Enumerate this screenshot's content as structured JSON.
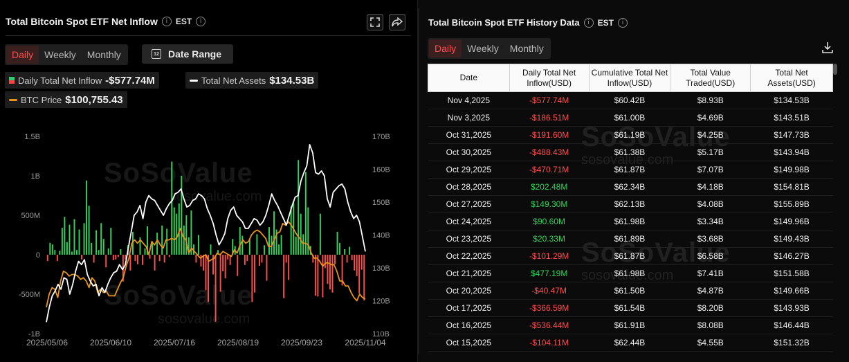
{
  "left": {
    "title": "Total Bitcoin Spot ETF Net Inflow",
    "timezone": "EST",
    "tabs": [
      "Daily",
      "Weekly",
      "Monthly"
    ],
    "active_tab": "Daily",
    "date_range_label": "Date Range",
    "legend": {
      "inflow_label": "Daily Total Net Inflow",
      "inflow_value": "-$577.74M",
      "assets_label": "Total Net Assets",
      "assets_value": "$134.53B",
      "btc_label": "BTC Price",
      "btc_value": "$100,755.43"
    },
    "icons": [
      "expand-icon",
      "share-icon",
      "info-icon",
      "calendar-icon"
    ]
  },
  "watermark": {
    "brand": "SoSoValue",
    "url": "sosovalue.com"
  },
  "colors": {
    "positive": "#2fd45a",
    "negative": "#ff4d4d",
    "assets_line": "#ffffff",
    "btc_line": "#e8941a",
    "active_tab": "#ff4d4d"
  },
  "chart_data": {
    "type": "bar",
    "x_ticks": [
      "2025/05/06",
      "2025/06/10",
      "2025/07/16",
      "2025/08/19",
      "2025/09/23",
      "2025/11/04"
    ],
    "y_left_ticks": [
      "1.5B",
      "1B",
      "500M",
      "0",
      "-500M",
      "-1B"
    ],
    "y_right_ticks": [
      "170B",
      "160B",
      "150B",
      "140B",
      "130B",
      "120B",
      "110B"
    ],
    "y_left_range": [
      -1000,
      1500
    ],
    "y_right_range": [
      110,
      170
    ],
    "series": [
      {
        "name": "Daily Total Net Inflow",
        "unit": "M",
        "values": [
          -80,
          150,
          130,
          60,
          -80,
          50,
          340,
          480,
          160,
          380,
          40,
          450,
          60,
          320,
          -60,
          400,
          940,
          620,
          150,
          -100,
          310,
          60,
          400,
          200,
          -160,
          80,
          340,
          -70,
          -60,
          -30,
          70,
          -340,
          -60,
          120,
          -200,
          290,
          -80,
          -120,
          220,
          -130,
          80,
          360,
          -50,
          170,
          -200,
          280,
          -80,
          370,
          -100,
          330,
          -30,
          1180,
          600,
          520,
          650,
          1000,
          370,
          500,
          220,
          560,
          130,
          -100,
          250,
          -150,
          -200,
          -450,
          -600,
          130,
          -250,
          -850,
          60,
          -470,
          -210,
          -300,
          -60,
          -130,
          200,
          110,
          -270,
          350,
          240,
          -130,
          -80,
          200,
          -600,
          -480,
          260,
          -140,
          -100,
          120,
          -330,
          350,
          240,
          550,
          320,
          130,
          250,
          -550,
          -100,
          -320,
          610,
          680,
          230,
          1200,
          520,
          260,
          1050,
          600,
          110,
          -100,
          -520,
          -530,
          520,
          -540,
          -170,
          -370,
          -440,
          -480,
          -120,
          290,
          150,
          -390,
          70,
          -100,
          100,
          -70,
          -200,
          -270,
          -490,
          -190,
          -580
        ]
      },
      {
        "name": "Total Net Assets",
        "unit": "B",
        "values": [
          113.5,
          118,
          121.5,
          123,
          125,
          123.5,
          127,
          126.5,
          122,
          125,
          129,
          132,
          131,
          132.5,
          128,
          126,
          124.5,
          125,
          121.5,
          124,
          122.5,
          125,
          127,
          128.5,
          129,
          131,
          129.5,
          131,
          136,
          141,
          146,
          147,
          149,
          145,
          150,
          152,
          151,
          150.5,
          149,
          147.5,
          146,
          148,
          149.5,
          150.5,
          152.5,
          153,
          154,
          151,
          148.5,
          149,
          150.5,
          151,
          152.5,
          152,
          151,
          148,
          146,
          143.5,
          140,
          137,
          138.5,
          140.5,
          145,
          147.5,
          148.5,
          146,
          145,
          144,
          142,
          142,
          143.5,
          145,
          144.5,
          143,
          144,
          146,
          149,
          152.5,
          150.5,
          149,
          147,
          145,
          143,
          146,
          149,
          151.5,
          152,
          156.5,
          159,
          161,
          167.5,
          165,
          159,
          158.5,
          159.5,
          158,
          151,
          148.5,
          153,
          154,
          155,
          155.5,
          154,
          150,
          147,
          145,
          146,
          144,
          139.5,
          135
        ]
      },
      {
        "name": "BTC Price",
        "unit": "BTC",
        "values": [
          118,
          122,
          124,
          123.5,
          121,
          126,
          129,
          128.5,
          127.5,
          128,
          128,
          127.5,
          126.5,
          127,
          126,
          124,
          127,
          126,
          122.5,
          123.5,
          122.5,
          123,
          121.5,
          121.5,
          121.5,
          123.5,
          125.5,
          127,
          130.5,
          133,
          137.5,
          138.5,
          137.5,
          138.5,
          137.5,
          136.5,
          134,
          138,
          137,
          138.5,
          137,
          136,
          138.5,
          138.5,
          139,
          138.5,
          139.5,
          142,
          139.5,
          138.5,
          134.5,
          136,
          135,
          134,
          133,
          133.5,
          134,
          132,
          132.5,
          133,
          134.5,
          134,
          135,
          134.5,
          134,
          133.5,
          135.5,
          134.5,
          137,
          138.5,
          137.5,
          138,
          140,
          141,
          141.5,
          141,
          140,
          139,
          136.5,
          136.5,
          138.5,
          140.5,
          141,
          143.5,
          143,
          144,
          143,
          141.5,
          140,
          139,
          137.5,
          137.5,
          137,
          134.5,
          133,
          133,
          132,
          130.5,
          131.5,
          131.5,
          131,
          131,
          129,
          126,
          126,
          124.5,
          124.5,
          122.5,
          121,
          120,
          122,
          121,
          120.5
        ]
      }
    ]
  },
  "right": {
    "title": "Total Bitcoin Spot ETF History Data",
    "timezone": "EST",
    "tabs": [
      "Daily",
      "Weekly",
      "Monthly"
    ],
    "active_tab": "Daily",
    "download_icon": "download-icon",
    "columns": [
      "Date",
      "Daily Total Net Inflow(USD)",
      "Cumulative Total Net Inflow(USD)",
      "Total Value Traded(USD)",
      "Total Net Assets(USD)"
    ],
    "rows": [
      [
        "Nov 4,2025",
        "-$577.74M",
        "$60.42B",
        "$8.93B",
        "$134.53B"
      ],
      [
        "Nov 3,2025",
        "-$186.51M",
        "$61.00B",
        "$4.69B",
        "$143.51B"
      ],
      [
        "Oct 31,2025",
        "-$191.60M",
        "$61.19B",
        "$4.25B",
        "$147.73B"
      ],
      [
        "Oct 30,2025",
        "-$488.43M",
        "$61.38B",
        "$5.17B",
        "$143.94B"
      ],
      [
        "Oct 29,2025",
        "-$470.71M",
        "$61.87B",
        "$7.07B",
        "$149.98B"
      ],
      [
        "Oct 28,2025",
        "$202.48M",
        "$62.34B",
        "$4.18B",
        "$154.81B"
      ],
      [
        "Oct 27,2025",
        "$149.30M",
        "$62.13B",
        "$4.08B",
        "$155.89B"
      ],
      [
        "Oct 24,2025",
        "$90.60M",
        "$61.98B",
        "$3.34B",
        "$149.96B"
      ],
      [
        "Oct 23,2025",
        "$20.33M",
        "$61.89B",
        "$3.68B",
        "$149.43B"
      ],
      [
        "Oct 22,2025",
        "-$101.29M",
        "$61.87B",
        "$6.58B",
        "$146.27B"
      ],
      [
        "Oct 21,2025",
        "$477.19M",
        "$61.98B",
        "$7.41B",
        "$151.58B"
      ],
      [
        "Oct 20,2025",
        "-$40.47M",
        "$61.50B",
        "$4.87B",
        "$149.66B"
      ],
      [
        "Oct 17,2025",
        "-$366.59M",
        "$61.54B",
        "$8.20B",
        "$143.93B"
      ],
      [
        "Oct 16,2025",
        "-$536.44M",
        "$61.91B",
        "$8.08B",
        "$146.44B"
      ],
      [
        "Oct 15,2025",
        "-$104.11M",
        "$62.44B",
        "$4.55B",
        "$151.32B"
      ]
    ]
  }
}
